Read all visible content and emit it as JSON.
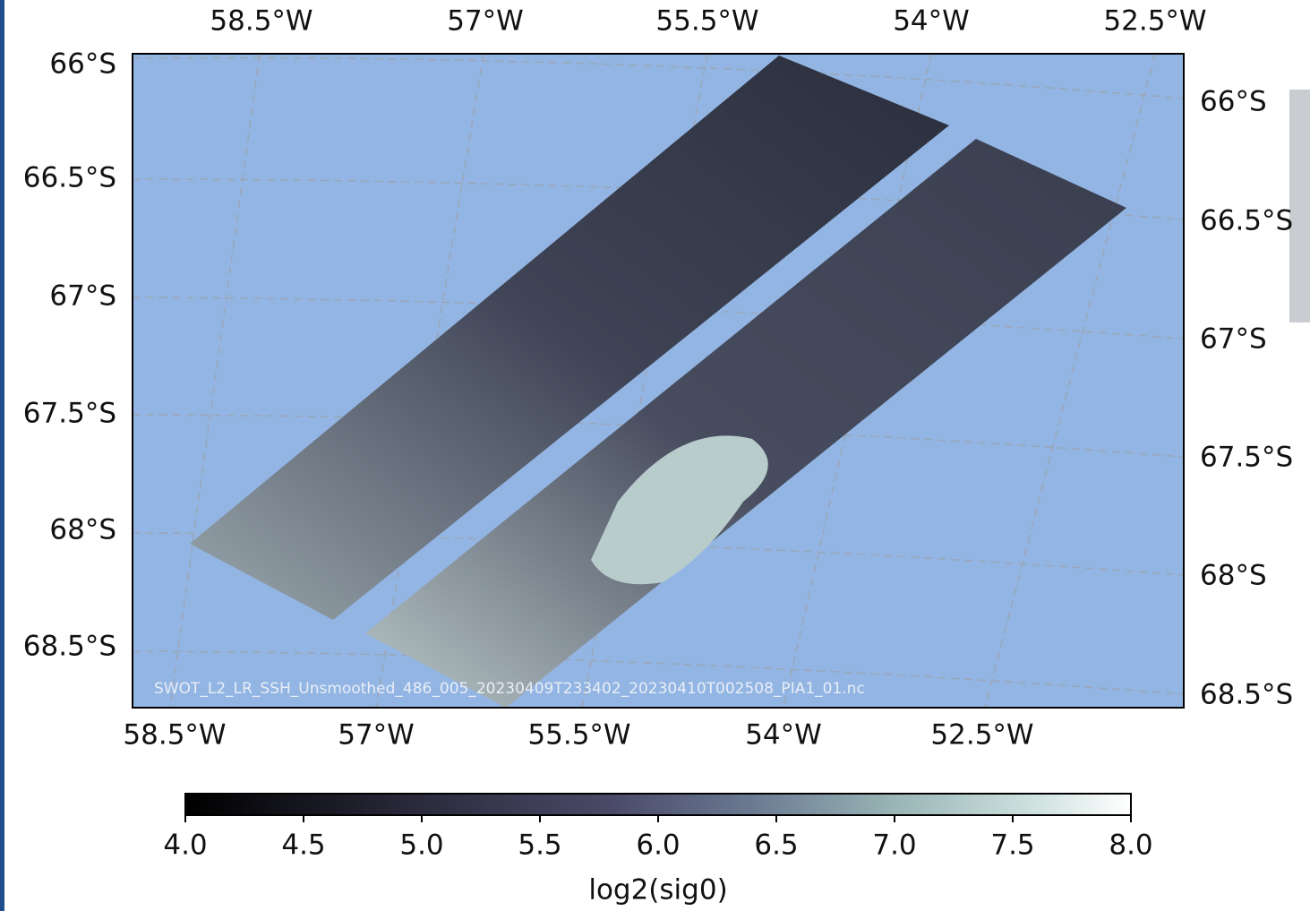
{
  "map": {
    "top_lon_labels": [
      "58.5°W",
      "57°W",
      "55.5°W",
      "54°W",
      "52.5°W"
    ],
    "bottom_lon_labels": [
      "58.5°W",
      "57°W",
      "55.5°W",
      "54°W",
      "52.5°W"
    ],
    "left_lat_labels": [
      "66°S",
      "66.5°S",
      "67°S",
      "67.5°S",
      "68°S",
      "68.5°S"
    ],
    "right_lat_labels": [
      "66°S",
      "66.5°S",
      "67°S",
      "67.5°S",
      "68°S",
      "68.5°S"
    ],
    "file_label": "SWOT_L2_LR_SSH_Unsmoothed_486_005_20230409T233402_20230410T002508_PIA1_01.nc"
  },
  "colorbar": {
    "lim": [
      4,
      8
    ],
    "ticks": [
      {
        "value": 4,
        "label": "4.0"
      },
      {
        "value": 4.5,
        "label": "4.5"
      },
      {
        "value": 5,
        "label": "5.0"
      },
      {
        "value": 5.5,
        "label": "5.5"
      },
      {
        "value": 6,
        "label": "6.0"
      },
      {
        "value": 6.5,
        "label": "6.5"
      },
      {
        "value": 7,
        "label": "7.0"
      },
      {
        "value": 7.5,
        "label": "7.5"
      },
      {
        "value": 8,
        "label": "8.0"
      }
    ],
    "label": "log2(sig0)"
  }
}
